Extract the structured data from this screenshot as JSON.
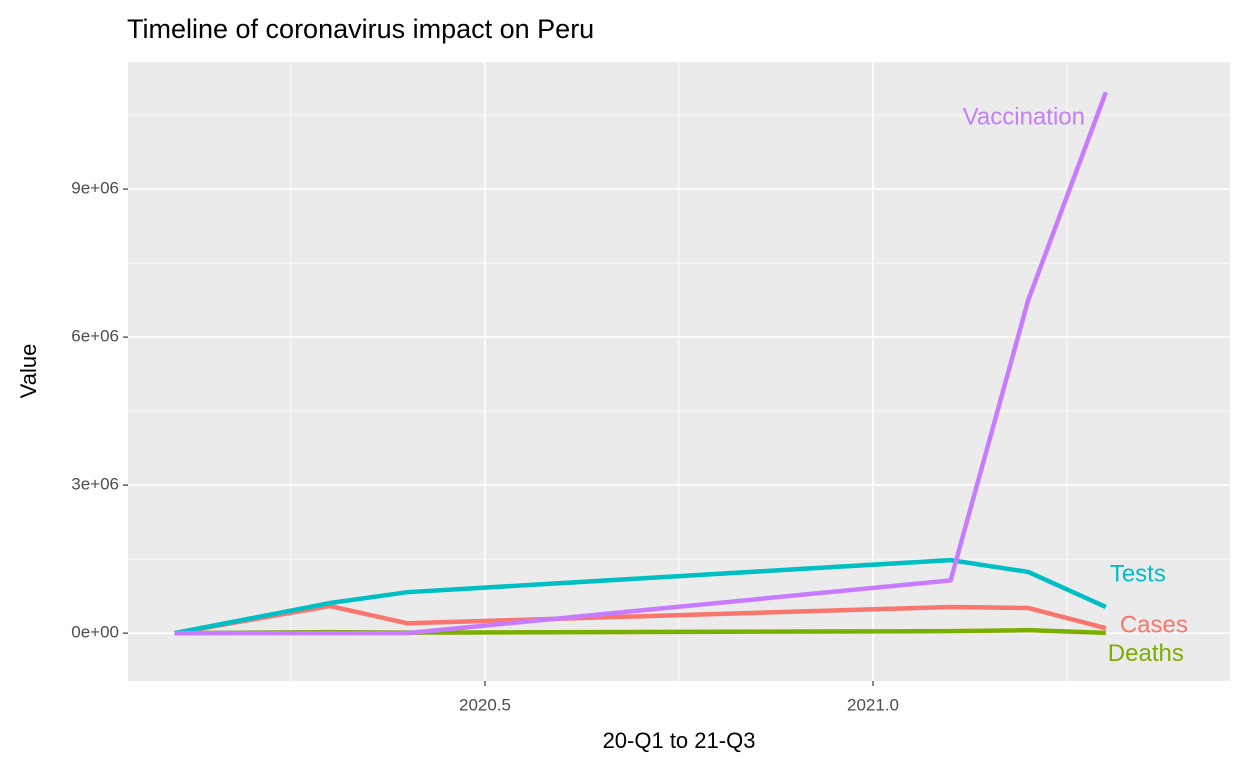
{
  "chart_data": {
    "type": "line",
    "title": "Timeline of coronavirus impact on Peru",
    "x_label": "20-Q1 to 21-Q3",
    "y_label": "Value",
    "x": [
      2020.1,
      2020.3,
      2020.4,
      2021.1,
      2021.2,
      2021.3
    ],
    "series": [
      {
        "name": "Cases",
        "color": "#F8766D",
        "values": [
          0,
          550000,
          200000,
          530000,
          510000,
          100000
        ]
      },
      {
        "name": "Deaths",
        "color": "#7CAE00",
        "values": [
          0,
          20000,
          10000,
          40000,
          60000,
          5000
        ]
      },
      {
        "name": "Tests",
        "color": "#00BFC4",
        "values": [
          0,
          610000,
          830000,
          1480000,
          1240000,
          530000
        ]
      },
      {
        "name": "Vaccination",
        "color": "#C77CFF",
        "values": [
          0,
          0,
          0,
          1070000,
          6750000,
          10960000
        ]
      }
    ],
    "xlim": [
      2020.04,
      2021.46
    ],
    "ylim": [
      -970000,
      11575000
    ],
    "xticks": [
      2020.5,
      {
        "value": 2021.0,
        "label": "2021.0"
      }
    ],
    "yticks": [
      {
        "value": 0,
        "label": "0e+00"
      },
      {
        "value": 3000000,
        "label": "3e+06"
      },
      {
        "value": 6000000,
        "label": "6e+06"
      },
      {
        "value": 9000000,
        "label": "9e+06"
      }
    ],
    "grid": true
  }
}
